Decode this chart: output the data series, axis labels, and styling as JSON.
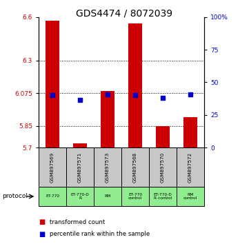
{
  "title": "GDS4474 / 8072039",
  "samples": [
    "GSM897569",
    "GSM897571",
    "GSM897573",
    "GSM897568",
    "GSM897570",
    "GSM897572"
  ],
  "bar_tops": [
    6.575,
    5.73,
    6.09,
    6.555,
    5.85,
    5.91
  ],
  "bar_bottom": 5.7,
  "blue_values": [
    6.062,
    6.03,
    6.068,
    6.062,
    6.042,
    6.068
  ],
  "ylim_left": [
    5.7,
    6.6
  ],
  "ylim_right": [
    0,
    100
  ],
  "yticks_left": [
    5.7,
    5.85,
    6.075,
    6.3,
    6.6
  ],
  "ytick_labels_left": [
    "5.7",
    "5.85",
    "6.075",
    "6.3",
    "6.6"
  ],
  "yticks_right": [
    0,
    25,
    50,
    75,
    100
  ],
  "ytick_labels_right": [
    "0",
    "25",
    "50",
    "75",
    "100%"
  ],
  "hlines": [
    5.85,
    6.075,
    6.3
  ],
  "bar_color": "#cc0000",
  "blue_color": "#0000cc",
  "protocol_labels": [
    "ET-770",
    "ET-770-D\nR",
    "RM",
    "ET-770\ncontrol",
    "ET-770-D\nR control",
    "RM\ncontrol"
  ],
  "protocol_bg": "#90ee90",
  "sample_bg": "#c8c8c8",
  "legend_bar_label": "transformed count",
  "legend_blue_label": "percentile rank within the sample",
  "title_fontsize": 10,
  "axis_label_color_left": "#cc0000",
  "axis_label_color_right": "#0000cc",
  "bar_width": 0.5
}
